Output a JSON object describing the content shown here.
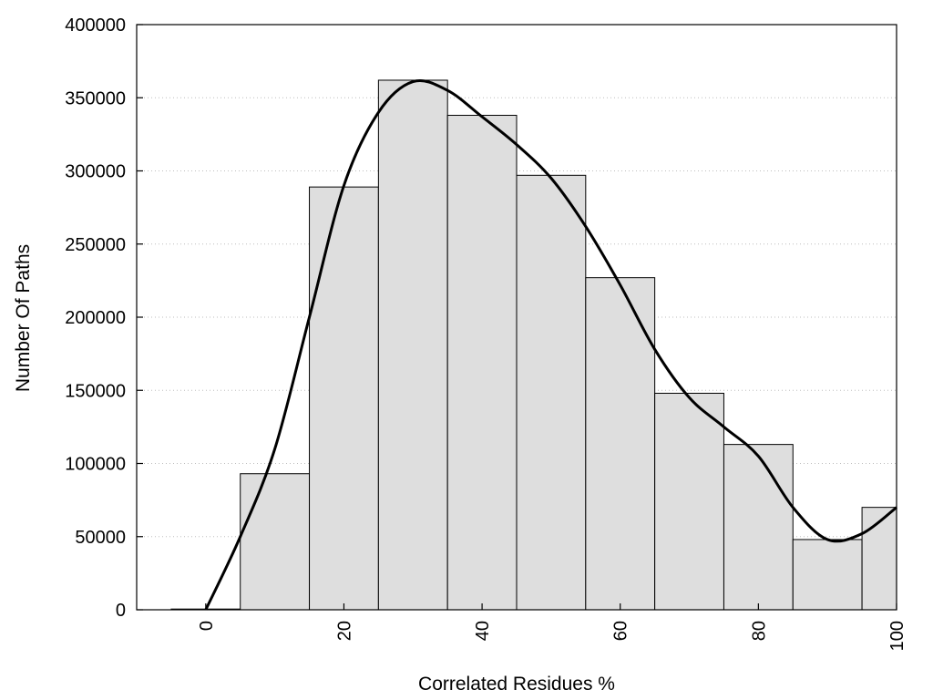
{
  "chart_data": {
    "type": "bar",
    "xlabel": "Correlated Residues %",
    "ylabel": "Number Of Paths",
    "xlim": [
      -10,
      100
    ],
    "ylim": [
      0,
      400000
    ],
    "yticks": [
      0,
      50000,
      100000,
      150000,
      200000,
      250000,
      300000,
      350000,
      400000
    ],
    "xticks": [
      0,
      20,
      40,
      60,
      80,
      100
    ],
    "grid": "horizontal dotted",
    "bin_width": 10,
    "bars": [
      {
        "x": 0,
        "value": 500
      },
      {
        "x": 10,
        "value": 93000
      },
      {
        "x": 20,
        "value": 289000
      },
      {
        "x": 30,
        "value": 362000
      },
      {
        "x": 40,
        "value": 338000
      },
      {
        "x": 50,
        "value": 297000
      },
      {
        "x": 60,
        "value": 227000
      },
      {
        "x": 70,
        "value": 148000
      },
      {
        "x": 80,
        "value": 113000
      },
      {
        "x": 90,
        "value": 48000
      },
      {
        "x": 100,
        "value": 70000
      }
    ],
    "curve": {
      "x": [
        0,
        5,
        10,
        15,
        20,
        25,
        30,
        35,
        40,
        45,
        50,
        55,
        60,
        65,
        70,
        75,
        80,
        85,
        90,
        95,
        100
      ],
      "y": [
        0,
        50000,
        110000,
        200000,
        290000,
        340000,
        361000,
        355000,
        337000,
        318000,
        295000,
        262000,
        222000,
        178000,
        145000,
        125000,
        105000,
        70000,
        48000,
        52000,
        70000
      ]
    },
    "colors": {
      "bar_fill": "#dedede",
      "bar_stroke": "#000000",
      "curve": "#000000"
    }
  }
}
